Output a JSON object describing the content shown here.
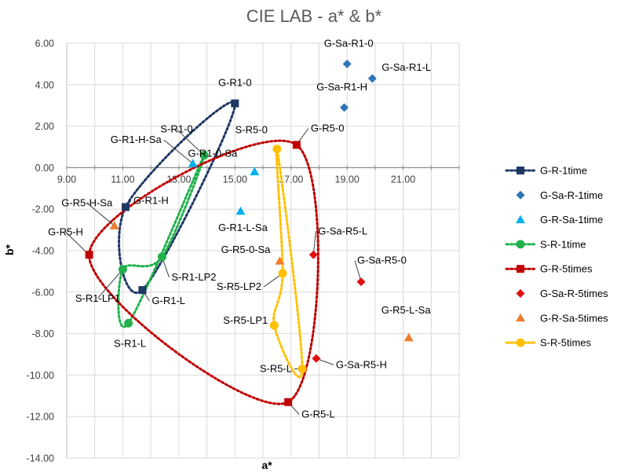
{
  "chart_data": {
    "type": "scatter",
    "title": "CIE LAB - a* & b*",
    "xlabel": "a*",
    "ylabel": "b*",
    "xlim": [
      9,
      23
    ],
    "ylim": [
      -14,
      6
    ],
    "x_ticks": [
      "9.00",
      "11.00",
      "13.00",
      "15.00",
      "17.00",
      "19.00",
      "21.00"
    ],
    "y_ticks": [
      "6.00",
      "4.00",
      "2.00",
      "0.00",
      "-2.00",
      "-4.00",
      "-6.00",
      "-8.00",
      "-10.00",
      "-12.00",
      "-14.00"
    ],
    "grid": "x and y major gridlines",
    "legend_position": "right",
    "series": [
      {
        "name": "G-R-1time",
        "marker": "square",
        "color": "#1f3864",
        "line": "dotted-smooth",
        "points": [
          {
            "label": "G-R1-0",
            "x": 15.0,
            "y": 3.1
          },
          {
            "label": "G-R1-L",
            "x": 11.7,
            "y": -5.9
          },
          {
            "label": "G-R1-H",
            "x": 11.1,
            "y": -1.9
          }
        ]
      },
      {
        "name": "G-Sa-R-1time",
        "marker": "diamond",
        "color": "#2e75b6",
        "line": "none",
        "points": [
          {
            "label": "G-Sa-R1-0",
            "x": 19.0,
            "y": 5.0
          },
          {
            "label": "G-Sa-R1-L",
            "x": 19.9,
            "y": 4.3
          },
          {
            "label": "G-Sa-R1-H",
            "x": 18.9,
            "y": 2.9
          }
        ]
      },
      {
        "name": "G-R-Sa-1time",
        "marker": "triangle",
        "color": "#00b0f0",
        "line": "none",
        "points": [
          {
            "label": "G-R1-H-Sa",
            "x": 13.5,
            "y": 0.2
          },
          {
            "label": "G-R1-0-Sa",
            "x": 15.7,
            "y": -0.2
          },
          {
            "label": "G-R1-L-Sa",
            "x": 15.2,
            "y": -2.1
          }
        ]
      },
      {
        "name": "S-R-1time",
        "marker": "circle",
        "color": "#22b14c",
        "line": "dotted-smooth",
        "points": [
          {
            "label": "S-R1-0",
            "x": 13.9,
            "y": 0.6
          },
          {
            "label": "S-R1-LP2",
            "x": 12.4,
            "y": -4.3
          },
          {
            "label": "S-R1-LP1",
            "x": 11.0,
            "y": -4.9
          },
          {
            "label": "S-R1-L",
            "x": 11.2,
            "y": -7.5
          }
        ]
      },
      {
        "name": "G-R-5times",
        "marker": "square",
        "color": "#c00000",
        "line": "dotted-smooth",
        "points": [
          {
            "label": "G-R5-0",
            "x": 17.2,
            "y": 1.1
          },
          {
            "label": "G-R5-L",
            "x": 16.9,
            "y": -11.3
          },
          {
            "label": "G-R5-H",
            "x": 9.8,
            "y": -4.2
          }
        ]
      },
      {
        "name": "G-Sa-R-5times",
        "marker": "diamond",
        "color": "#e01010",
        "line": "none",
        "points": [
          {
            "label": "G-Sa-R5-L",
            "x": 17.8,
            "y": -4.2
          },
          {
            "label": "G-Sa-R5-0",
            "x": 19.5,
            "y": -5.5
          },
          {
            "label": "G-Sa-R5-H",
            "x": 17.9,
            "y": -9.2
          }
        ]
      },
      {
        "name": "G-R-Sa-5times",
        "marker": "triangle",
        "color": "#ed7d31",
        "line": "none",
        "points": [
          {
            "label": "G-R5-H-Sa",
            "x": 10.7,
            "y": -2.8
          },
          {
            "label": "G-R5-0-Sa",
            "x": 16.6,
            "y": -4.5
          },
          {
            "label": "G-R5-L-Sa",
            "x": 21.2,
            "y": -8.2
          }
        ]
      },
      {
        "name": "S-R-5times",
        "marker": "circle",
        "color": "#ffc000",
        "line": "dotted-smooth",
        "points": [
          {
            "label": "S-R5-0",
            "x": 16.5,
            "y": 0.9
          },
          {
            "label": "S-R5-LP2",
            "x": 16.7,
            "y": -5.1
          },
          {
            "label": "S-R5-LP1",
            "x": 16.4,
            "y": -7.6
          },
          {
            "label": "S-R5-L",
            "x": 17.4,
            "y": -9.7
          }
        ]
      }
    ]
  }
}
